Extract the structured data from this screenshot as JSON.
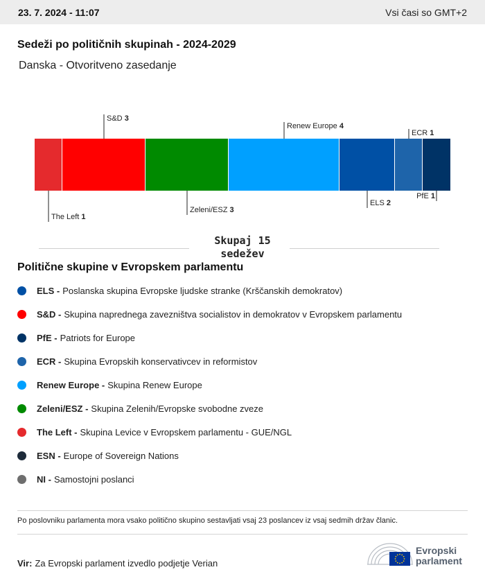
{
  "header": {
    "timestamp": "23. 7. 2024 - 11:07",
    "timezone": "Vsi časi so GMT+2"
  },
  "title": "Sedeži po političnih skupinah - 2024-2029",
  "subtitle": "Danska - Otvoritveno zasedanje",
  "total": {
    "line1": "Skupaj 15",
    "line2": "sedežev"
  },
  "chart_data": {
    "type": "bar",
    "orientation": "horizontal-stacked",
    "categories": [
      "The Left",
      "S&D",
      "Zeleni/ESZ",
      "Renew Europe",
      "ELS",
      "ECR",
      "PfE"
    ],
    "values": [
      1,
      3,
      3,
      4,
      2,
      1,
      1
    ],
    "colors": [
      "#e52a2d",
      "#ff0000",
      "#008a00",
      "#00a0ff",
      "#0050a5",
      "#1e64aa",
      "#003366"
    ],
    "label_side": [
      "bottom",
      "top",
      "bottom",
      "top",
      "bottom",
      "top",
      "bottom"
    ],
    "total": 15
  },
  "legend": {
    "title": "Politične skupine v Evropskem parlamentu",
    "items": [
      {
        "abbr": "ELS -",
        "name": "Poslanska skupina Evropske ljudske stranke (Krščanskih demokratov)",
        "color": "#0050a5"
      },
      {
        "abbr": "S&D -",
        "name": "Skupina naprednega zavezništva socialistov in demokratov v Evropskem parlamentu",
        "color": "#ff0000"
      },
      {
        "abbr": "PfE -",
        "name": "Patriots for Europe",
        "color": "#003366"
      },
      {
        "abbr": "ECR -",
        "name": "Skupina Evropskih konservativcev in reformistov",
        "color": "#1e64aa"
      },
      {
        "abbr": "Renew Europe -",
        "name": "Skupina Renew Europe",
        "color": "#00a0ff"
      },
      {
        "abbr": "Zeleni/ESZ -",
        "name": "Skupina Zelenih/Evropske svobodne zveze",
        "color": "#008a00"
      },
      {
        "abbr": "The Left -",
        "name": "Skupina Levice v Evropskem parlamentu - GUE/NGL",
        "color": "#e52a2d"
      },
      {
        "abbr": "ESN -",
        "name": "Europe of Sovereign Nations",
        "color": "#1d2b3a"
      },
      {
        "abbr": "NI -",
        "name": "Samostojni poslanci",
        "color": "#6e6e6e"
      }
    ]
  },
  "note": "Po poslovniku parlamenta mora vsako politično skupino sestavljati vsaj 23 poslancev iz vsaj sedmih držav članic.",
  "source": {
    "label": "Vir:",
    "text": "Za Evropski parlament izvedlo podjetje Verian"
  },
  "logo": {
    "line1": "Evropski",
    "line2": "parlament",
    "icon": "eu-parliament-hemicycle-icon",
    "flag_color": "#003399",
    "star_color": "#ffcc00"
  }
}
